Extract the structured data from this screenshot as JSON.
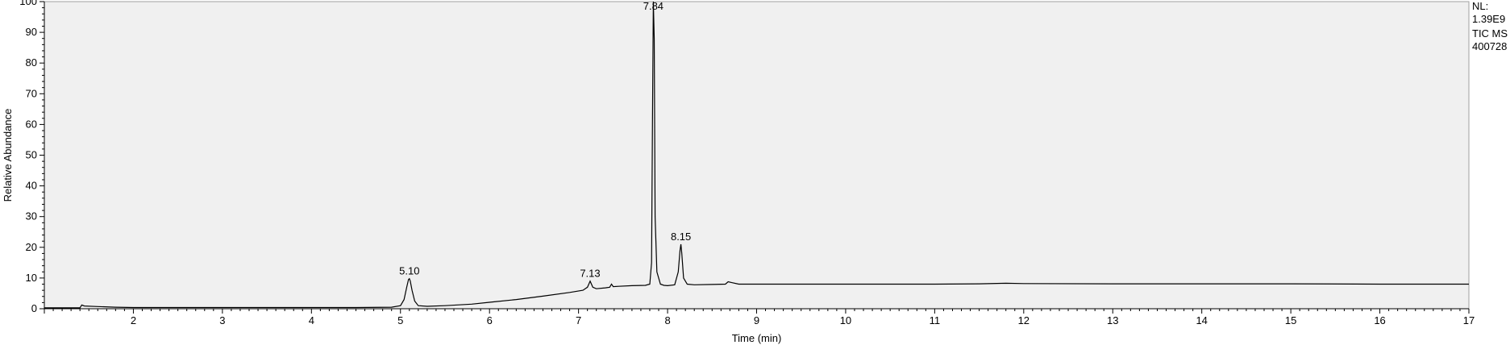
{
  "info": {
    "nl_label": "NL:",
    "nl_value": "1.39E9",
    "scan_filter": "TIC  MS",
    "sample": "400728"
  },
  "chart_data": {
    "type": "line",
    "title": "",
    "xlabel": "Time (min)",
    "ylabel": "Relative Abundance",
    "xlim": [
      1.0,
      17.0
    ],
    "ylim": [
      0,
      100
    ],
    "x_ticks": [
      2,
      3,
      4,
      5,
      6,
      7,
      8,
      9,
      10,
      11,
      12,
      13,
      14,
      15,
      16,
      17
    ],
    "x_tick_labels": [
      "2",
      "3",
      "4",
      "5",
      "6",
      "7",
      "8",
      "9",
      "10",
      "11",
      "12",
      "13",
      "14",
      "15",
      "16",
      "17"
    ],
    "y_ticks": [
      0,
      10,
      20,
      30,
      40,
      50,
      60,
      70,
      80,
      90,
      100
    ],
    "y_tick_labels": [
      "0",
      "10",
      "20",
      "30",
      "40",
      "50",
      "60",
      "70",
      "80",
      "90",
      "100"
    ],
    "grid": false,
    "background": "#f0f0f0",
    "line_color": "#000000",
    "peak_labels": [
      {
        "x": 5.1,
        "y": 9.8,
        "text": "5.10"
      },
      {
        "x": 7.13,
        "y": 9.0,
        "text": "7.13"
      },
      {
        "x": 7.84,
        "y": 100,
        "text": "7.84"
      },
      {
        "x": 8.15,
        "y": 21.0,
        "text": "8.15"
      }
    ],
    "series": [
      {
        "x": [
          1.0,
          1.4,
          1.42,
          1.45,
          1.6,
          1.8,
          2.0,
          2.5,
          3.0,
          3.5,
          4.0,
          4.5,
          4.9,
          5.0,
          5.04,
          5.07,
          5.09,
          5.1,
          5.11,
          5.13,
          5.16,
          5.2,
          5.3,
          5.5,
          5.8,
          6.0,
          6.3,
          6.6,
          6.9,
          7.05,
          7.1,
          7.13,
          7.16,
          7.2,
          7.3,
          7.35,
          7.37,
          7.39,
          7.45,
          7.6,
          7.75,
          7.8,
          7.82,
          7.83,
          7.84,
          7.85,
          7.86,
          7.88,
          7.92,
          7.96,
          8.0,
          8.08,
          8.12,
          8.14,
          8.15,
          8.16,
          8.18,
          8.22,
          8.3,
          8.5,
          8.65,
          8.68,
          8.72,
          8.8,
          9.0,
          10.0,
          11.0,
          11.5,
          11.8,
          12.0,
          13.0,
          14.0,
          15.0,
          16.0,
          17.0
        ],
        "y": [
          0.3,
          0.3,
          1.2,
          0.9,
          0.7,
          0.5,
          0.4,
          0.4,
          0.4,
          0.4,
          0.4,
          0.4,
          0.5,
          1.0,
          3.0,
          7.0,
          9.5,
          9.8,
          9.0,
          6.0,
          2.5,
          1.0,
          0.8,
          1.0,
          1.5,
          2.1,
          3.0,
          4.1,
          5.3,
          6.0,
          7.0,
          9.0,
          7.0,
          6.5,
          6.8,
          7.0,
          8.0,
          7.2,
          7.3,
          7.5,
          7.6,
          8.0,
          15.0,
          60.0,
          100.0,
          88.0,
          30.0,
          12.0,
          8.0,
          7.6,
          7.5,
          7.8,
          12.0,
          19.0,
          21.0,
          18.0,
          10.0,
          8.0,
          7.8,
          7.9,
          8.0,
          8.8,
          8.5,
          8.0,
          8.0,
          8.0,
          8.0,
          8.1,
          8.3,
          8.2,
          8.1,
          8.1,
          8.1,
          8.0,
          8.0
        ]
      }
    ]
  }
}
